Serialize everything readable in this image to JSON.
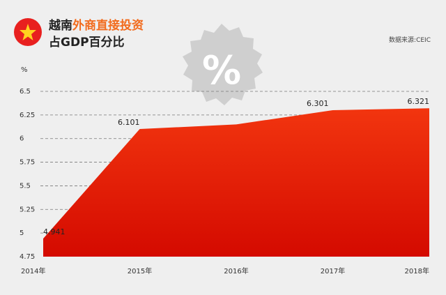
{
  "header": {
    "title_part1": "越南",
    "title_accent": "外商直接投资",
    "title_line2": "占GDP百分比",
    "source": "数据来源:CEIC",
    "badge_symbol": "%",
    "flag_icon": "vietnam-flag-icon"
  },
  "colors": {
    "area_top": "#f2350f",
    "area_bottom": "#d40a00",
    "accent": "#f26b1d",
    "badge": "#cfcfcf"
  },
  "chart_data": {
    "type": "area",
    "x": [
      "2014年",
      "2015年",
      "2016年",
      "2017年",
      "2018年"
    ],
    "values": [
      4.941,
      6.101,
      6.15,
      6.301,
      6.321
    ],
    "data_labels": [
      "4.941",
      "6.101",
      "",
      "6.301",
      "6.321"
    ],
    "ylabel": "%",
    "ylim": [
      4.75,
      6.5
    ],
    "yticks": [
      "4.75",
      "5",
      "5.25",
      "5.5",
      "5.75",
      "6",
      "6.25",
      "6.5"
    ],
    "grid": "dashed-horizontal"
  }
}
